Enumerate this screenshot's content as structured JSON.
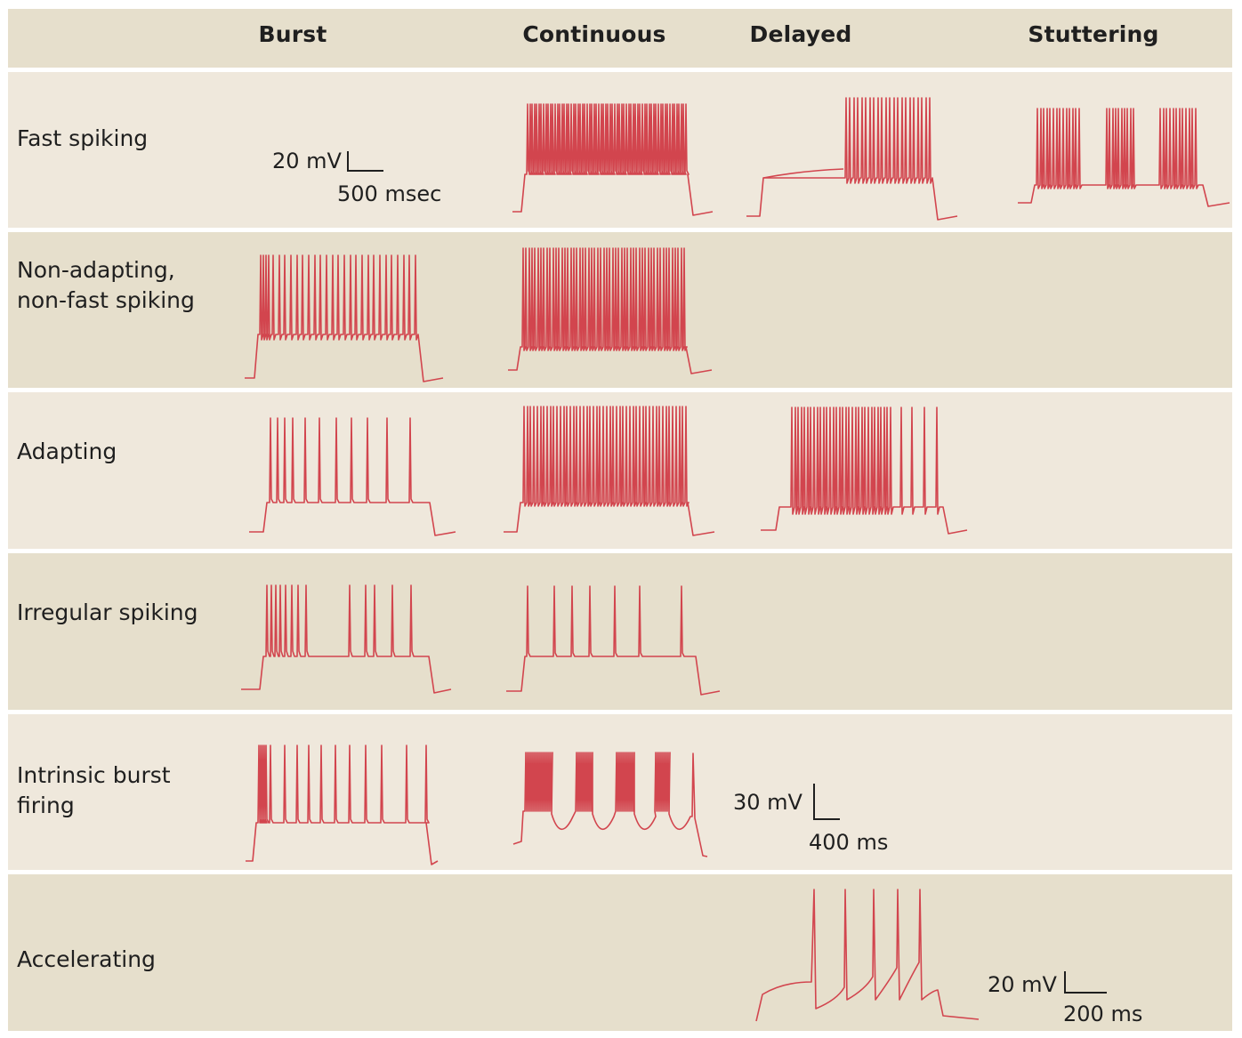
{
  "columns": [
    "Burst",
    "Continuous",
    "Delayed",
    "Stuttering"
  ],
  "rows": [
    {
      "label": "Fast spiking"
    },
    {
      "label": "Non-adapting,\nnon-fast spiking"
    },
    {
      "label": "Adapting"
    },
    {
      "label": "Irregular spiking"
    },
    {
      "label": "Intrinsic burst\nfiring"
    },
    {
      "label": "Accelerating"
    }
  ],
  "scale_bars": [
    {
      "voltage": "20 mV",
      "time": "500 msec"
    },
    {
      "voltage": "30 mV",
      "time": "400 ms"
    },
    {
      "voltage": "20 mV",
      "time": "200 ms"
    }
  ],
  "trace_color": "#d2454e",
  "band_colors": {
    "light": "#efe8dc",
    "dark": "#e6dfcc"
  }
}
